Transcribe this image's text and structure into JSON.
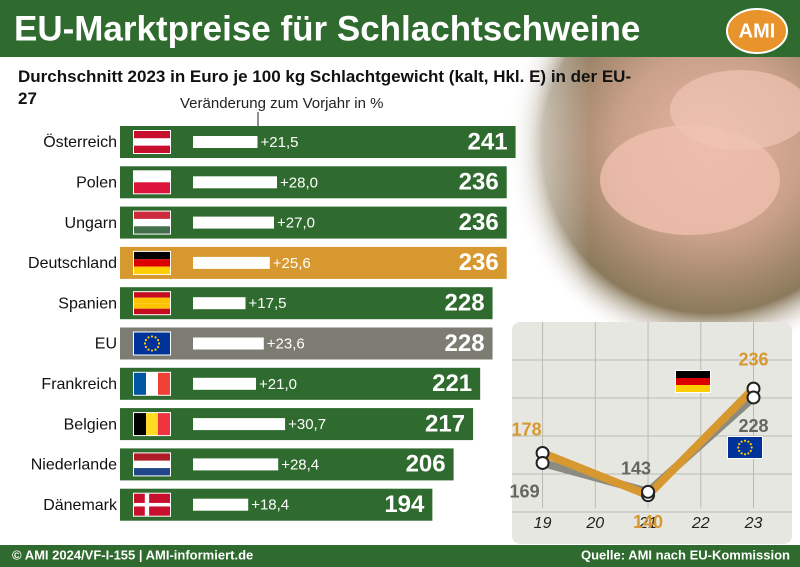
{
  "chart_data": [
    {
      "type": "hbar",
      "title": "EU-Marktpreise für Schlachtschweine",
      "subtitle": "Durchschnitt 2023 in Euro je 100 kg Schlachtgewicht (kalt, Hkl. E) in der EU-27",
      "categories": [
        "Österreich",
        "Polen",
        "Ungarn",
        "Deutschland",
        "Spanien",
        "EU",
        "Frankreich",
        "Belgien",
        "Niederlande",
        "Dänemark"
      ],
      "values": [
        241,
        236,
        236,
        236,
        228,
        228,
        221,
        217,
        206,
        194
      ],
      "colors": [
        "#2f6a2e",
        "#2f6a2e",
        "#2f6a2e",
        "#d7982f",
        "#2f6a2e",
        "#7d7c73",
        "#2f6a2e",
        "#2f6a2e",
        "#2f6a2e",
        "#2f6a2e"
      ],
      "change": {
        "name": "Veränderung zum Vorjahr in %",
        "values": [
          21.5,
          28.0,
          27.0,
          25.6,
          17.5,
          23.6,
          21.0,
          30.7,
          28.4,
          18.4
        ],
        "value_labels": [
          "+21,5",
          "+28,0",
          "+27,0",
          "+25,6",
          "+17,5",
          "+23,6",
          "+21,0",
          "+30,7",
          "+28,4",
          "+18,4"
        ],
        "color": "#ffffff"
      }
    },
    {
      "type": "line",
      "x": [
        19,
        21,
        23
      ],
      "xticks": [
        19,
        20,
        21,
        22,
        23
      ],
      "xlim": [
        18.42,
        23.73
      ],
      "ylim": [
        96,
        296
      ],
      "grid": true,
      "series": [
        {
          "name": "Deutschland",
          "color": "#d7982f",
          "label_color": "#d7982f",
          "values": [
            178,
            140,
            236
          ]
        },
        {
          "name": "EU",
          "color": "#8c8b82",
          "label_color": "#666660",
          "values": [
            169,
            143,
            228
          ]
        }
      ]
    }
  ],
  "header": {
    "logo": "AMI"
  },
  "footer": {
    "left": "© AMI 2024/VF-I-155 | AMI-informiert.de",
    "right": "Quelle: AMI nach EU-Kommission"
  }
}
